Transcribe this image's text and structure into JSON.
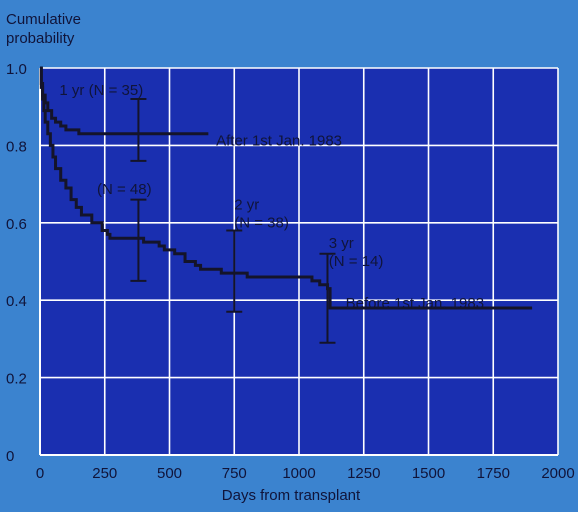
{
  "chart_data": {
    "type": "line",
    "ylabel": "Cumulative\nprobability",
    "xlabel": "Days from transplant",
    "xlim": [
      0,
      2000
    ],
    "ylim": [
      0,
      1.0
    ],
    "x_ticks": [
      "0",
      "250",
      "500",
      "750",
      "1000",
      "1250",
      "1500",
      "1750",
      "2000"
    ],
    "y_ticks": [
      "0",
      "0.2",
      "0.4",
      "0.6",
      "0.8",
      "1.0"
    ],
    "grid": true,
    "colors": {
      "background": "#3b83cf",
      "plot_area": "#1a2fb0",
      "grid": "#ffffff",
      "series": "#14142a",
      "text": "#10143a"
    },
    "series": [
      {
        "name": "After 1st Jan. 1983",
        "step_points": [
          [
            0,
            1.0
          ],
          [
            5,
            0.96
          ],
          [
            10,
            0.93
          ],
          [
            20,
            0.91
          ],
          [
            30,
            0.89
          ],
          [
            45,
            0.87
          ],
          [
            60,
            0.86
          ],
          [
            80,
            0.85
          ],
          [
            100,
            0.84
          ],
          [
            150,
            0.83
          ],
          [
            650,
            0.83
          ]
        ]
      },
      {
        "name": "Before 1st Jan. 1983",
        "step_points": [
          [
            0,
            1.0
          ],
          [
            5,
            0.95
          ],
          [
            10,
            0.92
          ],
          [
            15,
            0.89
          ],
          [
            20,
            0.86
          ],
          [
            30,
            0.83
          ],
          [
            40,
            0.8
          ],
          [
            50,
            0.77
          ],
          [
            60,
            0.74
          ],
          [
            80,
            0.71
          ],
          [
            100,
            0.69
          ],
          [
            120,
            0.66
          ],
          [
            140,
            0.64
          ],
          [
            160,
            0.62
          ],
          [
            200,
            0.6
          ],
          [
            240,
            0.58
          ],
          [
            260,
            0.57
          ],
          [
            270,
            0.56
          ],
          [
            390,
            0.56
          ],
          [
            400,
            0.55
          ],
          [
            460,
            0.54
          ],
          [
            480,
            0.53
          ],
          [
            520,
            0.52
          ],
          [
            560,
            0.5
          ],
          [
            600,
            0.49
          ],
          [
            620,
            0.48
          ],
          [
            700,
            0.47
          ],
          [
            760,
            0.47
          ],
          [
            800,
            0.46
          ],
          [
            1050,
            0.45
          ],
          [
            1080,
            0.44
          ],
          [
            1110,
            0.43
          ],
          [
            1120,
            0.38
          ],
          [
            1900,
            0.38
          ]
        ]
      }
    ],
    "error_bars": [
      {
        "x": 380,
        "y": 0.83,
        "low": 0.76,
        "high": 0.92
      },
      {
        "x": 380,
        "y": 0.56,
        "low": 0.45,
        "high": 0.66
      },
      {
        "x": 750,
        "y": 0.47,
        "low": 0.37,
        "high": 0.58
      },
      {
        "x": 1110,
        "y": 0.42,
        "low": 0.29,
        "high": 0.52
      }
    ],
    "annotations": [
      {
        "id": "ann-1yr-after",
        "lines": [
          "1 yr (N = 35)"
        ],
        "x": 75,
        "y": 0.93
      },
      {
        "id": "ann-1yr-before",
        "lines": [
          "(N = 48)"
        ],
        "x": 220,
        "y": 0.675
      },
      {
        "id": "ann-2yr",
        "lines": [
          "2 yr",
          "(N = 38)"
        ],
        "x": 750,
        "y": 0.635
      },
      {
        "id": "ann-3yr",
        "lines": [
          "3 yr",
          "(N = 14)"
        ],
        "x": 1115,
        "y": 0.535
      },
      {
        "id": "ann-after-label",
        "lines": [
          "After 1st Jan. 1983"
        ],
        "x": 680,
        "y": 0.8
      },
      {
        "id": "ann-before-label",
        "lines": [
          "Before 1st Jan. 1983"
        ],
        "x": 1180,
        "y": 0.38
      }
    ]
  }
}
